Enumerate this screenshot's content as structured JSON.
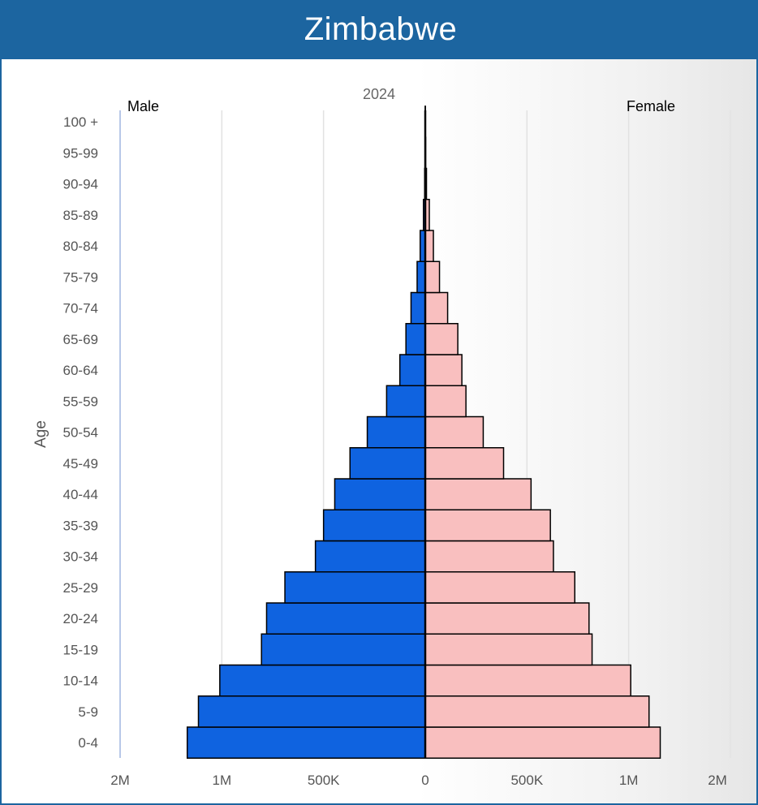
{
  "header": {
    "title": "Zimbabwe"
  },
  "chart_data": {
    "type": "bar",
    "subtitle": "2024",
    "ylabel": "Age",
    "left_label": "Male",
    "right_label": "Female",
    "xlim": [
      -1500000,
      1500000
    ],
    "x_ticks": [
      {
        "value": -1500000,
        "label": "2M"
      },
      {
        "value": -1000000,
        "label": "1M"
      },
      {
        "value": -500000,
        "label": "500K"
      },
      {
        "value": 0,
        "label": "0"
      },
      {
        "value": 500000,
        "label": "500K"
      },
      {
        "value": 1000000,
        "label": "1M"
      },
      {
        "value": 1500000,
        "label": "2M"
      }
    ],
    "categories": [
      "0-4",
      "5-9",
      "10-14",
      "15-19",
      "20-24",
      "25-29",
      "30-34",
      "35-39",
      "40-44",
      "45-49",
      "50-54",
      "55-59",
      "60-64",
      "65-69",
      "70-74",
      "75-79",
      "80-84",
      "85-89",
      "90-94",
      "95-99",
      "100 +"
    ],
    "series": [
      {
        "name": "Male",
        "color": "#0f63e0",
        "values": [
          1170000,
          1115000,
          1010000,
          805000,
          780000,
          690000,
          540000,
          500000,
          445000,
          370000,
          285000,
          190000,
          125000,
          95000,
          70000,
          40000,
          25000,
          9000,
          3000,
          1000,
          300
        ]
      },
      {
        "name": "Female",
        "color": "#f9bfbf",
        "values": [
          1155000,
          1100000,
          1010000,
          820000,
          805000,
          735000,
          630000,
          615000,
          520000,
          385000,
          285000,
          200000,
          180000,
          160000,
          110000,
          70000,
          40000,
          20000,
          6000,
          2000,
          500
        ]
      }
    ],
    "grid": true
  }
}
